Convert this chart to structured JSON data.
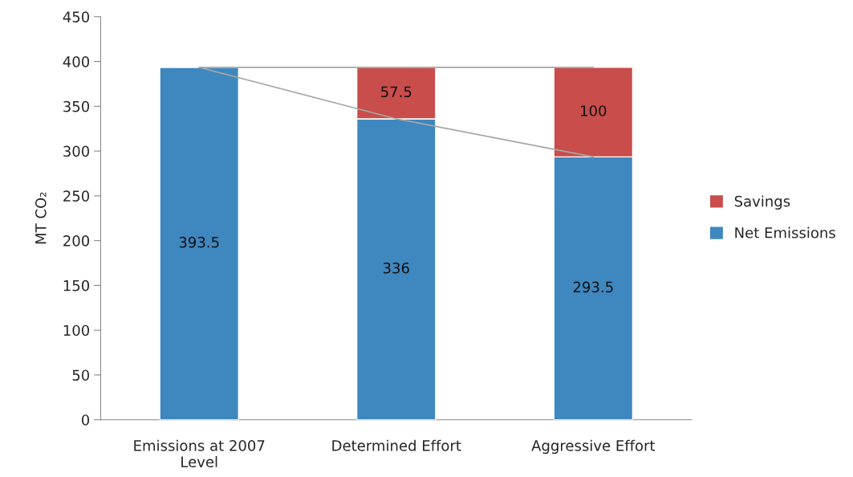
{
  "chart_data": {
    "type": "bar",
    "stacked": true,
    "ylabel": "MT CO₂",
    "categories": [
      "Emissions at 2007\nLevel",
      "Determined Effort",
      "Aggressive Effort"
    ],
    "series": [
      {
        "name": "Net Emissions",
        "color": "#3f87bf",
        "values": [
          393.5,
          336,
          293.5
        ],
        "value_labels": [
          "393.5",
          "336",
          "293.5"
        ]
      },
      {
        "name": "Savings",
        "color": "#c84d4b",
        "values": [
          null,
          57.5,
          100
        ],
        "value_labels": [
          null,
          "57.5",
          "100"
        ]
      },
      {
        "type": "line",
        "color": "#a6a6a6",
        "values": [
          393.5,
          336,
          293.5
        ]
      },
      {
        "type": "line",
        "color": "#a6a6a6",
        "values": [
          393.5,
          393.5,
          393.5
        ]
      }
    ],
    "ylim": [
      0,
      450
    ],
    "yticks": [
      0,
      50,
      100,
      150,
      200,
      250,
      300,
      350,
      400,
      450
    ],
    "grid": false,
    "legend": "right"
  }
}
